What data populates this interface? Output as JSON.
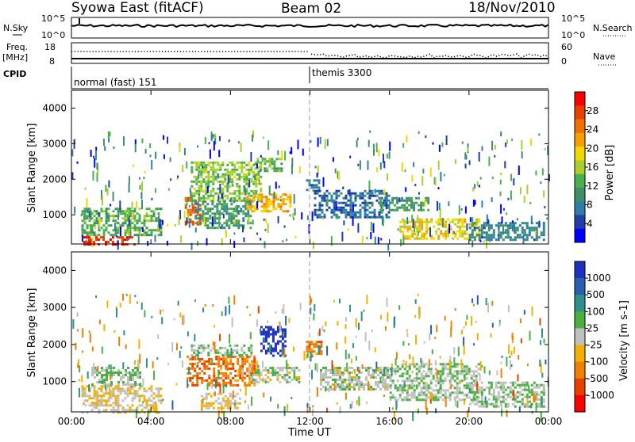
{
  "header": {
    "station": "Syowa East (fitACF)",
    "beam": "Beam 02",
    "date": "18/Nov/2010"
  },
  "noise_panel": {
    "left_label": "N.Sky",
    "left_ticks": [
      "10^5",
      "10^0"
    ],
    "right_label": "N.Search",
    "right_ticks": [
      "10^5",
      "10^0"
    ]
  },
  "freq_panel": {
    "left_label_1": "Freq.",
    "left_label_2": "[MHz]",
    "left_ticks": [
      "18",
      "8"
    ],
    "right_label": "Nave",
    "right_ticks": [
      "60",
      "0"
    ]
  },
  "cpid_panel": {
    "label": "CPID",
    "modes": [
      {
        "name": "normal (fast) 151",
        "start": "00:00"
      },
      {
        "name": "themis 3300",
        "start": "12:00"
      }
    ]
  },
  "power_panel": {
    "ylabel": "Slant Range [km]",
    "yticks": [
      "4000",
      "3000",
      "2000",
      "1000"
    ],
    "colorbar_label": "Power [dB]",
    "colorbar_ticks": [
      "28",
      "24",
      "20",
      "16",
      "12",
      "8",
      "4"
    ],
    "colors": [
      "#0000ff",
      "#1f3fa6",
      "#2e7fa8",
      "#3f8f6a",
      "#4bb04b",
      "#a8cf2e",
      "#f0d800",
      "#f5a000",
      "#f07000",
      "#e84000",
      "#ff0000"
    ]
  },
  "velocity_panel": {
    "ylabel": "Slant Range [km]",
    "yticks": [
      "4000",
      "3000",
      "2000",
      "1000"
    ],
    "colorbar_label": "Velocity [m s-1]",
    "colorbar_ticks": [
      "1000",
      "500",
      "100",
      "25",
      "-25",
      "-100",
      "-500",
      "-1000"
    ],
    "colors": [
      "#2030c0",
      "#2a5fb0",
      "#2f8f8a",
      "#4ab040",
      "#c0c0c0",
      "#f0b000",
      "#f08000",
      "#e84000",
      "#ff0000"
    ]
  },
  "x_axis": {
    "ticks": [
      "00:00",
      "04:00",
      "08:00",
      "12:00",
      "16:00",
      "20:00",
      "00:00"
    ],
    "label": "Time UT"
  },
  "chart_data": [
    {
      "type": "line",
      "name": "sky noise",
      "x_range": [
        "00:00",
        "24:00"
      ],
      "ylim": [
        "10^0",
        "10^5"
      ],
      "y_scale": "log"
    },
    {
      "type": "scatter",
      "name": "frequency and nave",
      "x_range": [
        "00:00",
        "24:00"
      ],
      "ylim_left": [
        8,
        18
      ],
      "ylim_right": [
        0,
        60
      ]
    },
    {
      "type": "heatmap",
      "name": "power",
      "x_range_hours": [
        0,
        24
      ],
      "y_range_km": [
        180,
        4500
      ],
      "value_unit": "dB",
      "color_range": [
        0,
        30
      ],
      "regions": [
        {
          "t0": 0.6,
          "t1": 3.2,
          "r0": 180,
          "r1": 400,
          "value": 28
        },
        {
          "t0": 0.5,
          "t1": 4.5,
          "r0": 400,
          "r1": 1200,
          "value": 12
        },
        {
          "t0": 5.7,
          "t1": 6.5,
          "r0": 700,
          "r1": 1500,
          "value": 24
        },
        {
          "t0": 6.0,
          "t1": 9.5,
          "r0": 1400,
          "r1": 2500,
          "value": 14
        },
        {
          "t0": 6.2,
          "t1": 9.0,
          "r0": 600,
          "r1": 1400,
          "value": 10
        },
        {
          "t0": 8.8,
          "t1": 11.0,
          "r0": 1100,
          "r1": 1600,
          "value": 20
        },
        {
          "t0": 9.2,
          "t1": 10.6,
          "r0": 2200,
          "r1": 2600,
          "value": 12
        },
        {
          "t0": 11.8,
          "t1": 12.4,
          "r0": 1700,
          "r1": 2000,
          "value": 8
        },
        {
          "t0": 12.2,
          "t1": 16.0,
          "r0": 900,
          "r1": 1700,
          "value": 6
        },
        {
          "t0": 15.5,
          "t1": 18.0,
          "r0": 1100,
          "r1": 1500,
          "value": 10
        },
        {
          "t0": 16.5,
          "t1": 20.5,
          "r0": 300,
          "r1": 900,
          "value": 18
        },
        {
          "t0": 20.0,
          "t1": 23.8,
          "r0": 300,
          "r1": 800,
          "value": 8
        }
      ]
    },
    {
      "type": "heatmap",
      "name": "velocity",
      "x_range_hours": [
        0,
        24
      ],
      "y_range_km": [
        180,
        4500
      ],
      "value_unit": "m s-1",
      "color_range": [
        -1000,
        1000
      ],
      "regions": [
        {
          "t0": 0.5,
          "t1": 4.5,
          "r0": 180,
          "r1": 900,
          "value": -100
        },
        {
          "t0": 1.0,
          "t1": 3.5,
          "r0": 900,
          "r1": 1400,
          "value": 100
        },
        {
          "t0": 5.8,
          "t1": 9.2,
          "r0": 900,
          "r1": 1700,
          "value": -500
        },
        {
          "t0": 6.0,
          "t1": 9.0,
          "r0": 1700,
          "r1": 2000,
          "value": 100
        },
        {
          "t0": 6.5,
          "t1": 8.5,
          "r0": 300,
          "r1": 700,
          "value": -100
        },
        {
          "t0": 9.0,
          "t1": 11.5,
          "r0": 1000,
          "r1": 1400,
          "value": 0
        },
        {
          "t0": 9.5,
          "t1": 10.8,
          "r0": 1700,
          "r1": 2500,
          "value": 1000
        },
        {
          "t0": 11.8,
          "t1": 12.6,
          "r0": 1700,
          "r1": 2100,
          "value": -500
        },
        {
          "t0": 12.5,
          "t1": 16.0,
          "r0": 800,
          "r1": 1400,
          "value": 25
        },
        {
          "t0": 16.0,
          "t1": 20.5,
          "r0": 500,
          "r1": 1500,
          "value": 100
        },
        {
          "t0": 20.0,
          "t1": 23.8,
          "r0": 300,
          "r1": 1000,
          "value": 100
        }
      ]
    }
  ]
}
